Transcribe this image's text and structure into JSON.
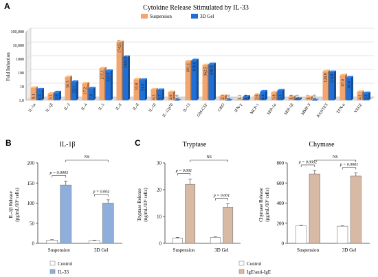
{
  "panel_letters": {
    "a": "A",
    "b": "B",
    "c": "C"
  },
  "chart_data": [
    {
      "panel": "A",
      "type": "bar",
      "title": "Cytokine Release Stimulated by IL-33",
      "ylabel": "Fold Induction",
      "xlabel": "",
      "yscale": "log",
      "ylim": [
        1,
        100000
      ],
      "yticks": [
        "1.0",
        "10",
        "100",
        "1000",
        "10,000",
        "100,000"
      ],
      "grid": true,
      "legend": "top",
      "categories": [
        "IL-1α",
        "IL-1β",
        "IL-2",
        "IL-4",
        "IL-5",
        "IL-6",
        "IL-8",
        "IL-10",
        "IL-12p70",
        "IL-13",
        "GM-CSF",
        "GRO",
        "IFN-γ",
        "MCP-1",
        "MIP-1α",
        "MIP-1β",
        "MMP-9",
        "RANTES",
        "TFN-α",
        "VEGF"
      ],
      "series": [
        {
          "name": "Suspension",
          "color": "#f2a56f",
          "values": [
            8.1,
            3.1,
            50.5,
            17.2,
            215.1,
            17425.7,
            33.8,
            6.3,
            4.0,
            691.1,
            362.5,
            2.1,
            1.2,
            2.6,
            3.8,
            1.8,
            1.7,
            128.9,
            67.0,
            4.2
          ],
          "labels": [
            "8.1",
            "3.1",
            "50.5",
            "17.2",
            "215.1",
            "17425.7",
            "33.8",
            "6.3",
            "4.0",
            "691.1",
            "362.5",
            "2.1",
            "1.2",
            "2.6",
            "3.8",
            "1.8",
            "1.7",
            "128.9",
            "67.0",
            "4.2"
          ]
        },
        {
          "name": "3D Gel",
          "color": "#1f6fd6",
          "values": [
            6.3,
            3.9,
            22.1,
            7.4,
            137.7,
            1445.9,
            31.0,
            5.7,
            1.0,
            839.0,
            438.3,
            1.0,
            1.9,
            4.4,
            5.3,
            1.3,
            1.0,
            114.8,
            46.4,
            3.3
          ],
          "labels": [
            "6.3",
            "3.9",
            "22.1",
            "7.4",
            "137.7",
            "1445.9",
            "31.0",
            "5.7",
            "1.0",
            "839.0",
            "438.3",
            "1.0",
            "1.9",
            "4.4",
            "5.3",
            "1.3",
            "1.0",
            "114.8",
            "46.4",
            "3.3"
          ]
        }
      ]
    },
    {
      "panel": "B",
      "type": "bar",
      "title": "IL-1β",
      "ylabel": "IL-1β Release",
      "ylabel2": "(pg/mL/10⁶ cells)",
      "ylim": [
        0,
        200
      ],
      "yticks": [
        0,
        50,
        100,
        150,
        200
      ],
      "categories": [
        "Suspension",
        "3D Gel"
      ],
      "series": [
        {
          "name": "Control",
          "color": "#ffffff",
          "values": [
            8,
            7
          ],
          "errors": [
            1,
            1
          ]
        },
        {
          "name": "IL-33",
          "color": "#8eaedc",
          "values": [
            145,
            100
          ],
          "errors": [
            10,
            8
          ]
        }
      ],
      "annotations": [
        "p = 0.0003",
        "p = 0.004",
        "NS"
      ]
    },
    {
      "panel": "C",
      "type": "bar",
      "title": "Tryptase",
      "ylabel": "Tryptase Release",
      "ylabel2": "(ng/mL/10⁶ cells)",
      "ylim": [
        0,
        30
      ],
      "yticks": [
        0,
        10,
        20,
        30
      ],
      "categories": [
        "Suspension",
        "3D Gel"
      ],
      "series": [
        {
          "name": "Control",
          "color": "#ffffff",
          "values": [
            2,
            2.2
          ],
          "errors": [
            0.2,
            0.2
          ]
        },
        {
          "name": "IgE/anti-IgE",
          "color": "#d8b9a4",
          "values": [
            22,
            13.5
          ],
          "errors": [
            2,
            1.2
          ]
        }
      ],
      "annotations": [
        "p = 0.001",
        "p = 0.001",
        "NS"
      ]
    },
    {
      "panel": "C",
      "type": "bar",
      "title": "Chymase",
      "ylabel": "Chymase Release",
      "ylabel2": "(pg/mL/10⁶ cells)",
      "ylim": [
        0,
        800
      ],
      "yticks": [
        0,
        200,
        400,
        600,
        800
      ],
      "categories": [
        "Suspension",
        "3D Gel"
      ],
      "series": [
        {
          "name": "Control",
          "color": "#ffffff",
          "values": [
            175,
            170
          ],
          "errors": [
            5,
            5
          ]
        },
        {
          "name": "IgE/anti-IgE",
          "color": "#d8b9a4",
          "values": [
            690,
            670
          ],
          "errors": [
            35,
            30
          ]
        }
      ],
      "annotations": [
        "p = 0.0002",
        "p < 0.0001",
        "NS"
      ]
    }
  ]
}
